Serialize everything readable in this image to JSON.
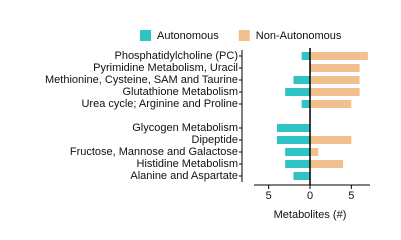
{
  "chart_data": {
    "type": "diverging-bar",
    "xlabel": "Metabolites (#)",
    "categories": [
      "Phosphatidylcholine (PC)",
      "Pyrimidine Metabolism, Uracil",
      "Methionine, Cysteine, SAM and Taurine",
      "Glutathione Metabolism",
      "Urea cycle; Arginine and Proline",
      null,
      "Glycogen Metabolism",
      "Dipeptide",
      "Fructose, Mannose and Galactose",
      "Histidine Metabolism",
      "Alanine and Aspartate"
    ],
    "series": [
      {
        "name": "Autonomous",
        "color": "#2ec4c6",
        "values": [
          -1,
          0,
          -2,
          -3,
          -1,
          null,
          -4,
          -4,
          -3,
          -3,
          -2
        ]
      },
      {
        "name": "Non-Autonomous",
        "color": "#f2c08f",
        "values": [
          7,
          6,
          6,
          6,
          5,
          null,
          0,
          5,
          1,
          4,
          0
        ]
      }
    ],
    "xlim": [
      -7.5,
      7.5
    ],
    "xticks": [
      {
        "value": -5,
        "label": "5"
      },
      0,
      5
    ],
    "legend": "top"
  }
}
